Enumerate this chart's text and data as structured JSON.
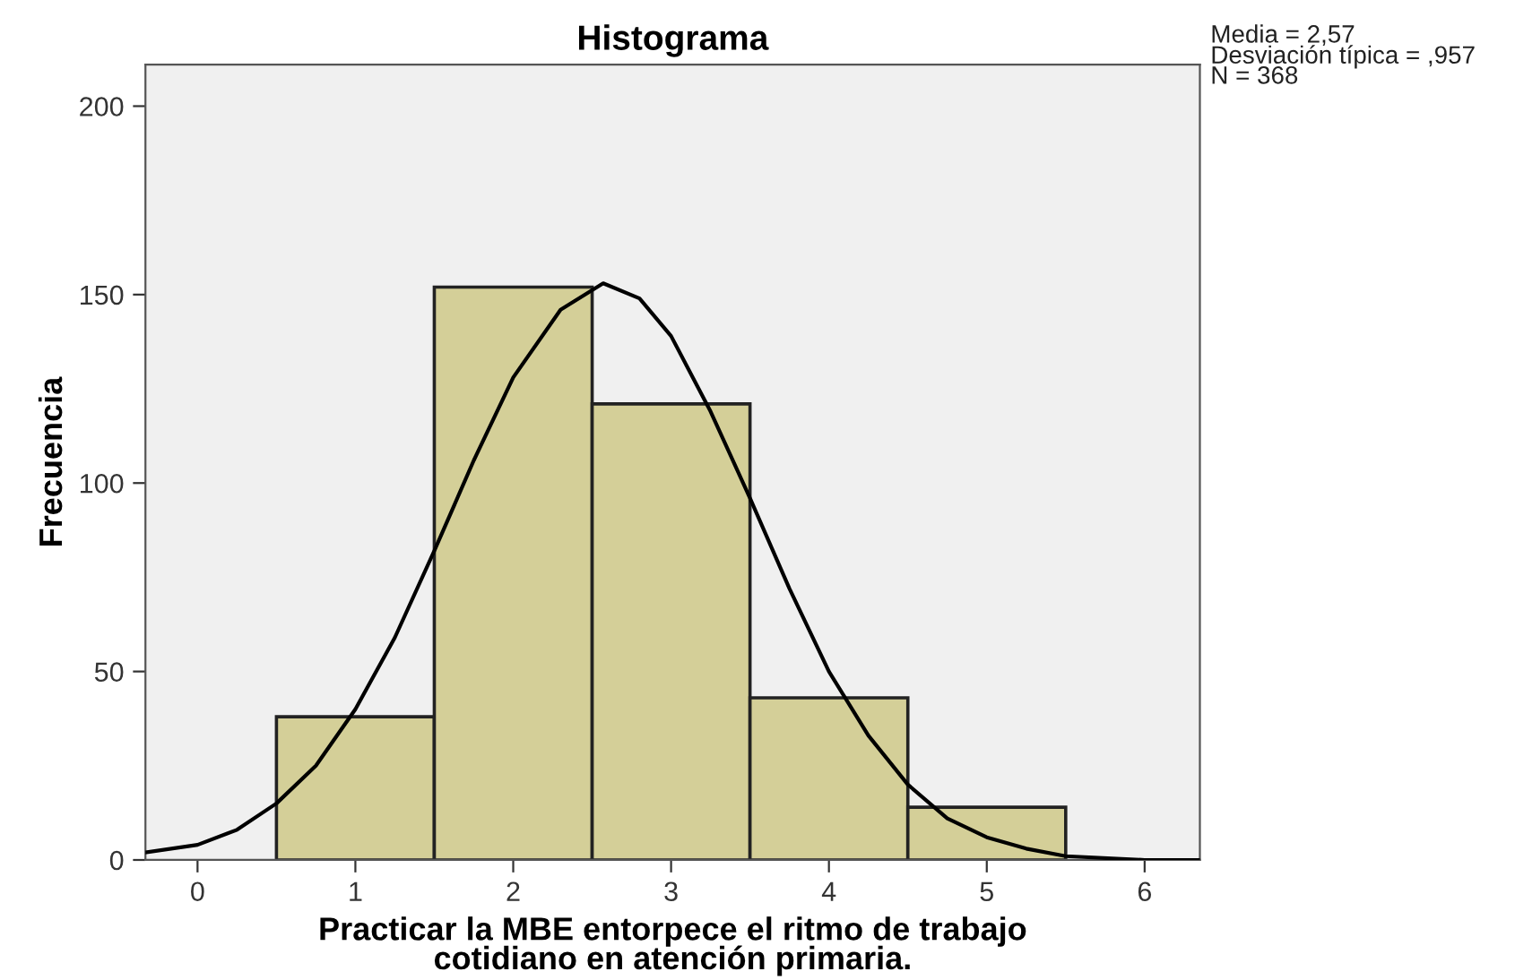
{
  "chart_data": {
    "type": "histogram",
    "title": "Histograma",
    "xlabel": "Practicar la MBE entorpece el ritmo de trabajo\ncotidiano en atención primaria.",
    "ylabel": "Frecuencia",
    "series": [
      {
        "type": "histogram",
        "color": "#d4cf98",
        "bins": [
          0.5,
          1.5,
          2.5,
          3.5,
          4.5,
          5.5
        ],
        "values": [
          38,
          152,
          121,
          43,
          14
        ]
      },
      {
        "type": "line",
        "color": "#000000",
        "x": [
          -0.33,
          0,
          0.25,
          0.5,
          0.75,
          1,
          1.25,
          1.5,
          1.75,
          2,
          2.3,
          2.57,
          2.8,
          3,
          3.25,
          3.5,
          3.75,
          4,
          4.25,
          4.5,
          4.75,
          5,
          5.25,
          5.5,
          6,
          6.35
        ],
        "values": [
          2,
          4,
          8,
          15,
          25,
          40,
          59,
          82,
          106,
          128,
          146,
          153,
          149,
          139,
          119,
          96,
          72,
          50,
          33,
          20,
          11,
          6,
          3,
          1,
          0,
          0
        ]
      }
    ],
    "xlim": [
      -0.33,
      6.35
    ],
    "xticks": [
      0,
      1,
      2,
      3,
      4,
      5,
      6
    ],
    "ylim": [
      0,
      211
    ],
    "yticks": [
      0,
      50,
      100,
      150,
      200
    ],
    "grid": false,
    "marker": "none",
    "line_style": "solid",
    "annotations": [
      "Media = 2,57",
      "Desviación típica = ,957",
      "N = 368"
    ]
  }
}
